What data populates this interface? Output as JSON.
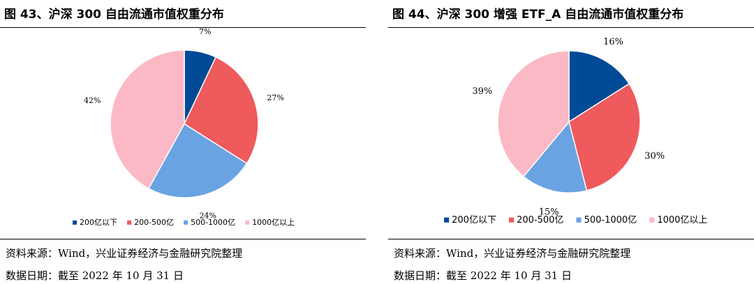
{
  "colors": {
    "200": "#004a96",
    "200_500": "#ef5a5c",
    "500_1000": "#6aa3e2",
    "1000": "#fbb9c5"
  },
  "panels": [
    {
      "title": "图 43、沪深 300 自由流通市值权重分布",
      "source": "资料来源：Wind，兴业证券经济与金融研究院整理",
      "date": "数据日期：截至 2022 年 10 月 31 日"
    },
    {
      "title": "图 44、沪深 300 增强 ETF_A 自由流通市值权重分布",
      "source": "资料来源：Wind，兴业证券经济与金融研究院整理",
      "date": "数据日期：截至 2022 年 10 月 31 日"
    }
  ],
  "chart_data": [
    {
      "type": "pie",
      "title": "",
      "slices": [
        {
          "label": "200亿以下",
          "value": 7,
          "text": "7%"
        },
        {
          "label": "200-500亿",
          "value": 27,
          "text": "27%"
        },
        {
          "label": "500-1000亿",
          "value": 24,
          "text": "24%"
        },
        {
          "label": "1000亿以上",
          "value": 42,
          "text": "42%"
        }
      ],
      "legend_position": "bottom"
    },
    {
      "type": "pie",
      "title": "",
      "slices": [
        {
          "label": "200亿以下",
          "value": 16,
          "text": "16%"
        },
        {
          "label": "200-500亿",
          "value": 30,
          "text": "30%"
        },
        {
          "label": "500-1000亿",
          "value": 15,
          "text": "15%"
        },
        {
          "label": "1000亿以上",
          "value": 39,
          "text": "39%"
        }
      ],
      "legend_position": "bottom"
    }
  ]
}
